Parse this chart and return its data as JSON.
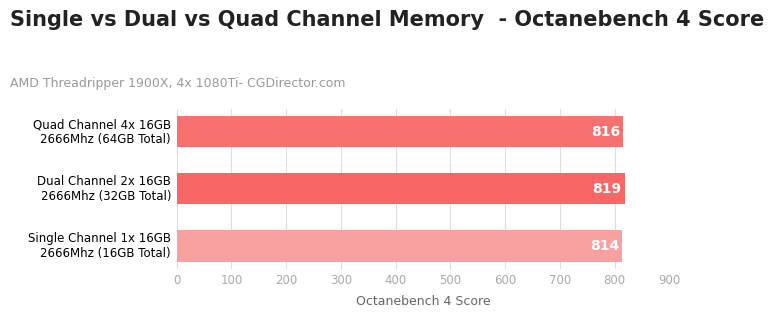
{
  "title": "Single vs Dual vs Quad Channel Memory  - Octanebench 4 Score",
  "subtitle": "AMD Threadripper 1900X, 4x 1080Ti- CGDirector.com",
  "categories": [
    "Single Channel 1x 16GB\n2666Mhz (16GB Total)",
    "Dual Channel 2x 16GB\n2666Mhz (32GB Total)",
    "Quad Channel 4x 16GB\n2666Mhz (64GB Total)"
  ],
  "values": [
    814,
    819,
    816
  ],
  "bar_colors": [
    "#F9A0A0",
    "#F96666",
    "#F97070"
  ],
  "xlabel": "Octanebench 4 Score",
  "xlim": [
    0,
    900
  ],
  "xticks": [
    0,
    100,
    200,
    300,
    400,
    500,
    600,
    700,
    800,
    900
  ],
  "value_label_color": "#ffffff",
  "value_label_fontsize": 10,
  "title_fontsize": 15,
  "subtitle_fontsize": 9,
  "background_color": "#ffffff",
  "grid_color": "#dddddd",
  "bar_height": 0.55
}
